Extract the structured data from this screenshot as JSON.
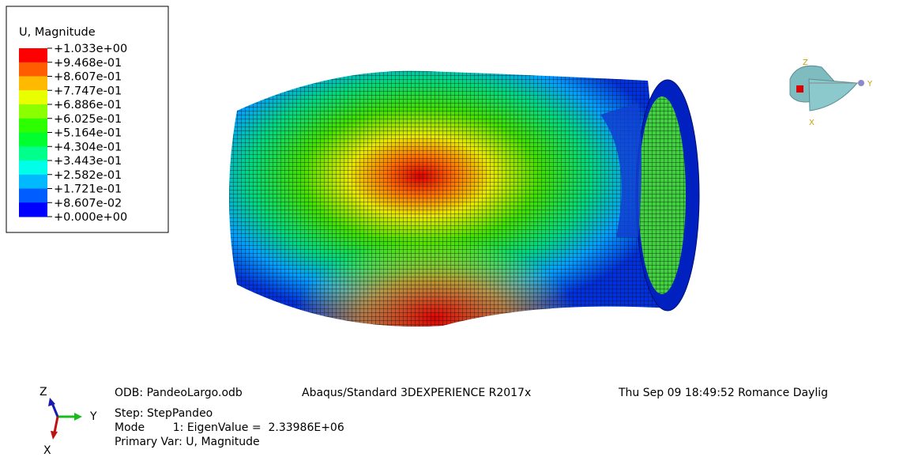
{
  "legend": {
    "title": "U, Magnitude",
    "labels": [
      "+1.033e+00",
      "+9.468e-01",
      "+8.607e-01",
      "+7.747e-01",
      "+6.886e-01",
      "+6.025e-01",
      "+5.164e-01",
      "+4.304e-01",
      "+3.443e-01",
      "+2.582e-01",
      "+1.721e-01",
      "+8.607e-02",
      "+0.000e+00"
    ]
  },
  "view_triad": {
    "z": "Z",
    "y": "Y",
    "x": "X"
  },
  "axis_triad": {
    "z": "Z",
    "y": "Y",
    "x": "X"
  },
  "info": {
    "odb": "ODB: PandeoLargo.odb",
    "solver": "Abaqus/Standard 3DEXPERIENCE R2017x",
    "date": "Thu Sep 09 18:49:52 Romance Daylig",
    "step": "Step: StepPandeo",
    "mode": "Mode        1: EigenValue =  2.33986E+06",
    "primary_var": "Primary Var: U, Magnitude"
  }
}
